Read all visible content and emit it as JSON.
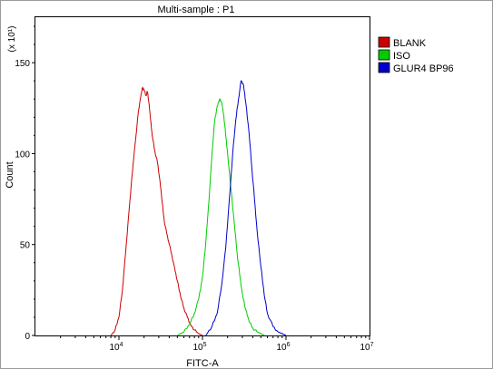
{
  "chart_data": {
    "type": "line",
    "title": "Multi-sample : P1",
    "xlabel": "FITC-A",
    "ylabel": "Count",
    "y_multiplier": "(x 10¹)",
    "x_scale": "log",
    "xlim": [
      1000,
      10000000
    ],
    "ylim": [
      0,
      175
    ],
    "x_ticks": [
      10000,
      100000,
      1000000,
      10000000
    ],
    "x_tick_labels": [
      {
        "base": "10",
        "exp": "4"
      },
      {
        "base": "10",
        "exp": "5"
      },
      {
        "base": "10",
        "exp": "6"
      },
      {
        "base": "10",
        "exp": "7"
      }
    ],
    "y_ticks": [
      0,
      50,
      100,
      150
    ],
    "y_tick_labels": [
      "0",
      "50",
      "100",
      "150"
    ],
    "grid": false,
    "legend_position": "top-right",
    "series": [
      {
        "name": "BLANK",
        "color": "#cc0000",
        "x": [
          8000,
          9000,
          10000,
          11000,
          12000,
          13000,
          14000,
          15000,
          16000,
          17000,
          18000,
          19000,
          20000,
          21000,
          22000,
          23000,
          24000,
          25000,
          27000,
          29000,
          31000,
          33000,
          35000,
          38000,
          42000,
          46000,
          50000,
          55000,
          60000,
          66000,
          72000,
          80000,
          90000,
          100000
        ],
        "y": [
          0,
          3,
          10,
          25,
          45,
          65,
          82,
          97,
          110,
          122,
          130,
          136,
          135,
          132,
          134,
          127,
          118,
          110,
          101,
          95,
          85,
          73,
          62,
          55,
          46,
          38,
          30,
          21,
          15,
          10,
          6,
          3,
          1,
          0
        ]
      },
      {
        "name": "ISO",
        "color": "#00cc00",
        "x": [
          50000,
          60000,
          70000,
          80000,
          90000,
          100000,
          110000,
          120000,
          130000,
          140000,
          150000,
          160000,
          170000,
          180000,
          190000,
          200000,
          220000,
          240000,
          260000,
          280000,
          300000,
          330000,
          360000,
          400000,
          450000,
          500000,
          550000
        ],
        "y": [
          0,
          2,
          6,
          12,
          20,
          32,
          52,
          75,
          100,
          118,
          126,
          130,
          128,
          121,
          110,
          100,
          80,
          62,
          45,
          33,
          23,
          14,
          8,
          4,
          2,
          1,
          0
        ]
      },
      {
        "name": "GLUR4 BP96",
        "color": "#0000cc",
        "x": [
          110000,
          130000,
          150000,
          170000,
          190000,
          210000,
          230000,
          250000,
          270000,
          290000,
          310000,
          330000,
          360000,
          390000,
          420000,
          450000,
          500000,
          550000,
          600000,
          700000,
          800000,
          900000,
          1000000
        ],
        "y": [
          0,
          5,
          12,
          28,
          48,
          75,
          100,
          118,
          130,
          140,
          138,
          128,
          112,
          92,
          75,
          58,
          38,
          22,
          12,
          5,
          2,
          1,
          0
        ]
      }
    ]
  }
}
